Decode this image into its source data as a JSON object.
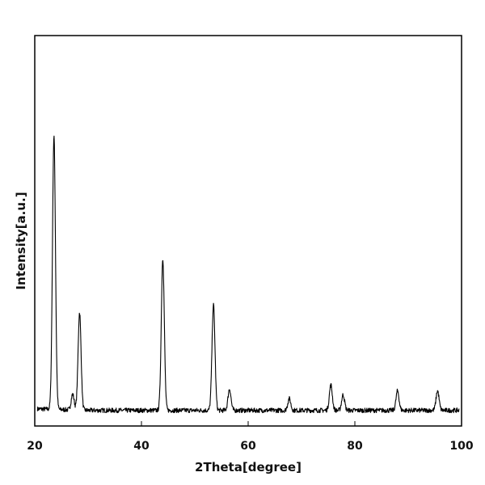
{
  "chart_data": {
    "type": "line",
    "xlabel": "2Theta[degree]",
    "ylabel": "Intensity[a.u.]",
    "xlim": [
      20,
      100
    ],
    "ylim": [
      0,
      1
    ],
    "x_ticks": [
      20,
      40,
      60,
      80,
      100
    ],
    "y_tick_labels": "none",
    "grid": false,
    "legend": "none",
    "line_color": "#000000",
    "baseline": 0.04,
    "peaks": [
      {
        "x": 23.6,
        "height": 0.7
      },
      {
        "x": 27.1,
        "height": 0.04
      },
      {
        "x": 28.4,
        "height": 0.25
      },
      {
        "x": 44.0,
        "height": 0.39
      },
      {
        "x": 53.5,
        "height": 0.27
      },
      {
        "x": 56.5,
        "height": 0.055
      },
      {
        "x": 67.7,
        "height": 0.03
      },
      {
        "x": 75.5,
        "height": 0.065
      },
      {
        "x": 77.8,
        "height": 0.04
      },
      {
        "x": 88.0,
        "height": 0.05
      },
      {
        "x": 95.5,
        "height": 0.05
      }
    ]
  }
}
